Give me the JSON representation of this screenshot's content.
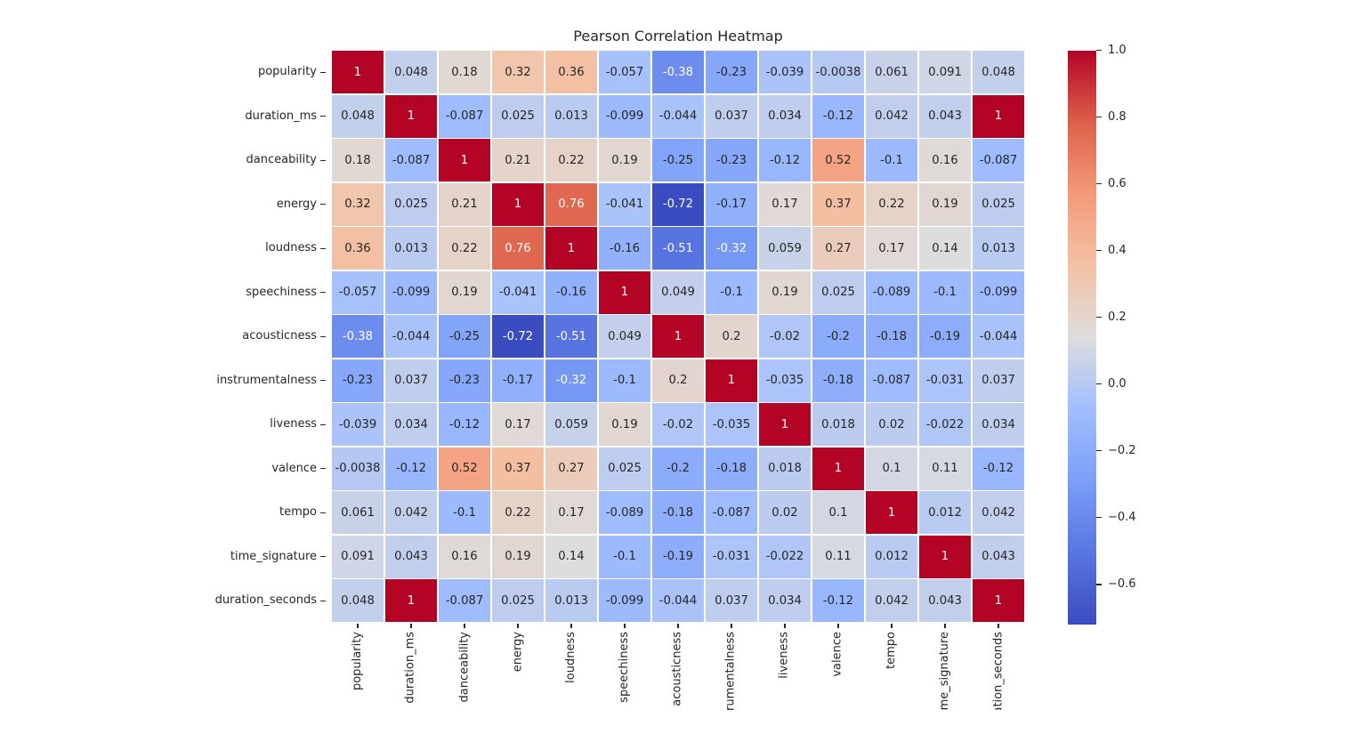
{
  "figure": {
    "title": "Pearson Correlation Heatmap"
  },
  "chart_data": {
    "type": "heatmap",
    "title": "Pearson Correlation Heatmap",
    "categories": [
      "popularity",
      "duration_ms",
      "danceability",
      "energy",
      "loudness",
      "speechiness",
      "acousticness",
      "instrumentalness",
      "liveness",
      "valence",
      "tempo",
      "time_signature",
      "duration_seconds"
    ],
    "matrix": [
      [
        1,
        0.048,
        0.18,
        0.32,
        0.36,
        -0.057,
        -0.38,
        -0.23,
        -0.039,
        -0.0038,
        0.061,
        0.091,
        0.048
      ],
      [
        0.048,
        1,
        -0.087,
        0.025,
        0.013,
        -0.099,
        -0.044,
        0.037,
        0.034,
        -0.12,
        0.042,
        0.043,
        1
      ],
      [
        0.18,
        -0.087,
        1,
        0.21,
        0.22,
        0.19,
        -0.25,
        -0.23,
        -0.12,
        0.52,
        -0.1,
        0.16,
        -0.087
      ],
      [
        0.32,
        0.025,
        0.21,
        1,
        0.76,
        -0.041,
        -0.72,
        -0.17,
        0.17,
        0.37,
        0.22,
        0.19,
        0.025
      ],
      [
        0.36,
        0.013,
        0.22,
        0.76,
        1,
        -0.16,
        -0.51,
        -0.32,
        0.059,
        0.27,
        0.17,
        0.14,
        0.013
      ],
      [
        -0.057,
        -0.099,
        0.19,
        -0.041,
        -0.16,
        1,
        0.049,
        -0.1,
        0.19,
        0.025,
        -0.089,
        -0.1,
        -0.099
      ],
      [
        -0.38,
        -0.044,
        -0.25,
        -0.72,
        -0.51,
        0.049,
        1,
        0.2,
        -0.02,
        -0.2,
        -0.18,
        -0.19,
        -0.044
      ],
      [
        -0.23,
        0.037,
        -0.23,
        -0.17,
        -0.32,
        -0.1,
        0.2,
        1,
        -0.035,
        -0.18,
        -0.087,
        -0.031,
        0.037
      ],
      [
        -0.039,
        0.034,
        -0.12,
        0.17,
        0.059,
        0.19,
        -0.02,
        -0.035,
        1,
        0.018,
        0.02,
        -0.022,
        0.034
      ],
      [
        -0.0038,
        -0.12,
        0.52,
        0.37,
        0.27,
        0.025,
        -0.2,
        -0.18,
        0.018,
        1,
        0.1,
        0.11,
        -0.12
      ],
      [
        0.061,
        0.042,
        -0.1,
        0.22,
        0.17,
        -0.089,
        -0.18,
        -0.087,
        0.02,
        0.1,
        1,
        0.012,
        0.042
      ],
      [
        0.091,
        0.043,
        0.16,
        0.19,
        0.14,
        -0.1,
        -0.19,
        -0.031,
        -0.022,
        0.11,
        0.012,
        1,
        0.043
      ],
      [
        0.048,
        1,
        -0.087,
        0.025,
        0.013,
        -0.099,
        -0.044,
        0.037,
        0.034,
        -0.12,
        0.042,
        0.043,
        1
      ]
    ],
    "annotation_format": ".2g",
    "colormap": "coolwarm",
    "vmin": -0.72,
    "vmax": 1.0,
    "colorbar": {
      "tick_values": [
        1.0,
        0.8,
        0.6,
        0.4,
        0.2,
        0.0,
        -0.2,
        -0.4,
        -0.6
      ],
      "tick_labels": [
        "1.0",
        "0.8",
        "0.6",
        "0.4",
        "0.2",
        "0.0",
        "−0.2",
        "−0.4",
        "−0.6"
      ]
    },
    "colors": {
      "colormap_stops": [
        {
          "t": 0.0,
          "hex": "#3b4cc0"
        },
        {
          "t": 0.125,
          "hex": "#5875e1"
        },
        {
          "t": 0.25,
          "hex": "#7b9ef8"
        },
        {
          "t": 0.375,
          "hex": "#a1beff"
        },
        {
          "t": 0.5,
          "hex": "#dddddd"
        },
        {
          "t": 0.625,
          "hex": "#f4c1a4"
        },
        {
          "t": 0.75,
          "hex": "#f49a7a"
        },
        {
          "t": 0.875,
          "hex": "#dd604b"
        },
        {
          "t": 1.0,
          "hex": "#b40426"
        }
      ],
      "annotation_dark": "#262626",
      "annotation_light": "#ffffff",
      "grid_line": "#ffffff",
      "tick_mark": "#262626",
      "background": "#ffffff"
    },
    "legend_position": "right-colorbar",
    "grid": "white-cell-borders"
  }
}
